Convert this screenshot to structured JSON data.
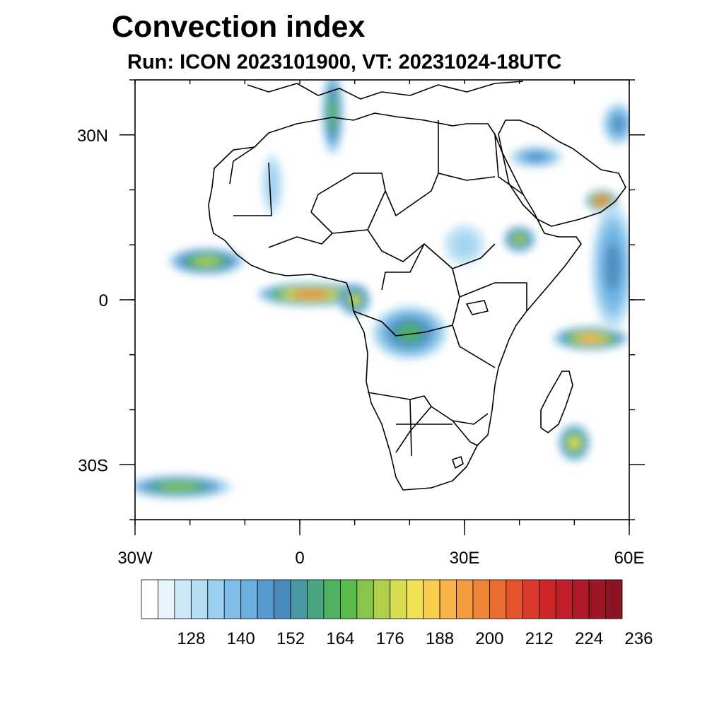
{
  "title": "Convection index",
  "subtitle": "Run: ICON 2023101900,  VT: 20231024-18UTC",
  "map": {
    "lon_range": [
      -30,
      60
    ],
    "lat_range": [
      -40,
      40
    ],
    "lon_ticks": [
      {
        "value": -30,
        "label": "30W"
      },
      {
        "value": 0,
        "label": "0"
      },
      {
        "value": 30,
        "label": "30E"
      },
      {
        "value": 60,
        "label": "60E"
      }
    ],
    "lat_ticks": [
      {
        "value": 30,
        "label": "30N"
      },
      {
        "value": 0,
        "label": "0"
      },
      {
        "value": -30,
        "label": "30S"
      }
    ],
    "minor_lon_step": 10,
    "minor_lat_step": 10
  },
  "colorbar": {
    "colors": [
      "#ffffff",
      "#e8f4fb",
      "#cde8f7",
      "#b4dcf3",
      "#9bd0f0",
      "#7fbde9",
      "#6aaee0",
      "#5599d0",
      "#4a8bbd",
      "#4a97a4",
      "#4aa680",
      "#4fb262",
      "#5cbb4d",
      "#87c54b",
      "#b0d04c",
      "#d8dc50",
      "#f0e153",
      "#f8cc4c",
      "#f8b448",
      "#f39c3f",
      "#ee8436",
      "#ea6c30",
      "#e4532c",
      "#dc3a2a",
      "#cf2629",
      "#c21d2a",
      "#b0192a",
      "#9c1626",
      "#8a1421"
    ],
    "labels": [
      "128",
      "140",
      "152",
      "164",
      "176",
      "188",
      "200",
      "212",
      "224",
      "236"
    ]
  },
  "chart_data": {
    "type": "heatmap",
    "variable": "Convection index",
    "model": "ICON",
    "run": "2023101900",
    "valid_time": "20231024-18UTC",
    "region": "Africa",
    "lon_range": [
      -30,
      60
    ],
    "lat_range": [
      -40,
      40
    ],
    "contour_levels": [
      120,
      124,
      128,
      132,
      136,
      140,
      144,
      148,
      152,
      156,
      160,
      164,
      168,
      172,
      176,
      180,
      184,
      188,
      192,
      196,
      200,
      204,
      208,
      212,
      216,
      220,
      224,
      228,
      232,
      236
    ],
    "blobs": [
      {
        "lon": 2,
        "lat": 1,
        "rx": 10,
        "ry": 2.2,
        "peak": 196
      },
      {
        "lon": -17,
        "lat": 7,
        "rx": 7,
        "ry": 2.5,
        "peak": 172
      },
      {
        "lon": 10,
        "lat": 0,
        "rx": 3,
        "ry": 3,
        "peak": 176
      },
      {
        "lon": 40,
        "lat": 11,
        "rx": 3,
        "ry": 2.5,
        "peak": 172
      },
      {
        "lon": 20,
        "lat": -6,
        "rx": 7,
        "ry": 5,
        "peak": 160
      },
      {
        "lon": 55,
        "lat": 18,
        "rx": 3,
        "ry": 2,
        "peak": 208
      },
      {
        "lon": 53,
        "lat": -7,
        "rx": 7,
        "ry": 2.2,
        "peak": 188
      },
      {
        "lon": 50,
        "lat": -26,
        "rx": 3,
        "ry": 3.5,
        "peak": 180
      },
      {
        "lon": -22,
        "lat": -34,
        "rx": 10,
        "ry": 2.2,
        "peak": 168
      },
      {
        "lon": 6,
        "lat": 34,
        "rx": 2,
        "ry": 8,
        "peak": 164
      },
      {
        "lon": 43,
        "lat": 26,
        "rx": 5,
        "ry": 2,
        "peak": 150
      },
      {
        "lon": 57,
        "lat": 6,
        "rx": 4,
        "ry": 12,
        "peak": 150
      },
      {
        "lon": -5,
        "lat": 21,
        "rx": 2,
        "ry": 6,
        "peak": 135
      },
      {
        "lon": 58,
        "lat": 32,
        "rx": 3,
        "ry": 4,
        "peak": 148
      },
      {
        "lon": 30,
        "lat": 10,
        "rx": 4,
        "ry": 4,
        "peak": 134
      }
    ]
  }
}
